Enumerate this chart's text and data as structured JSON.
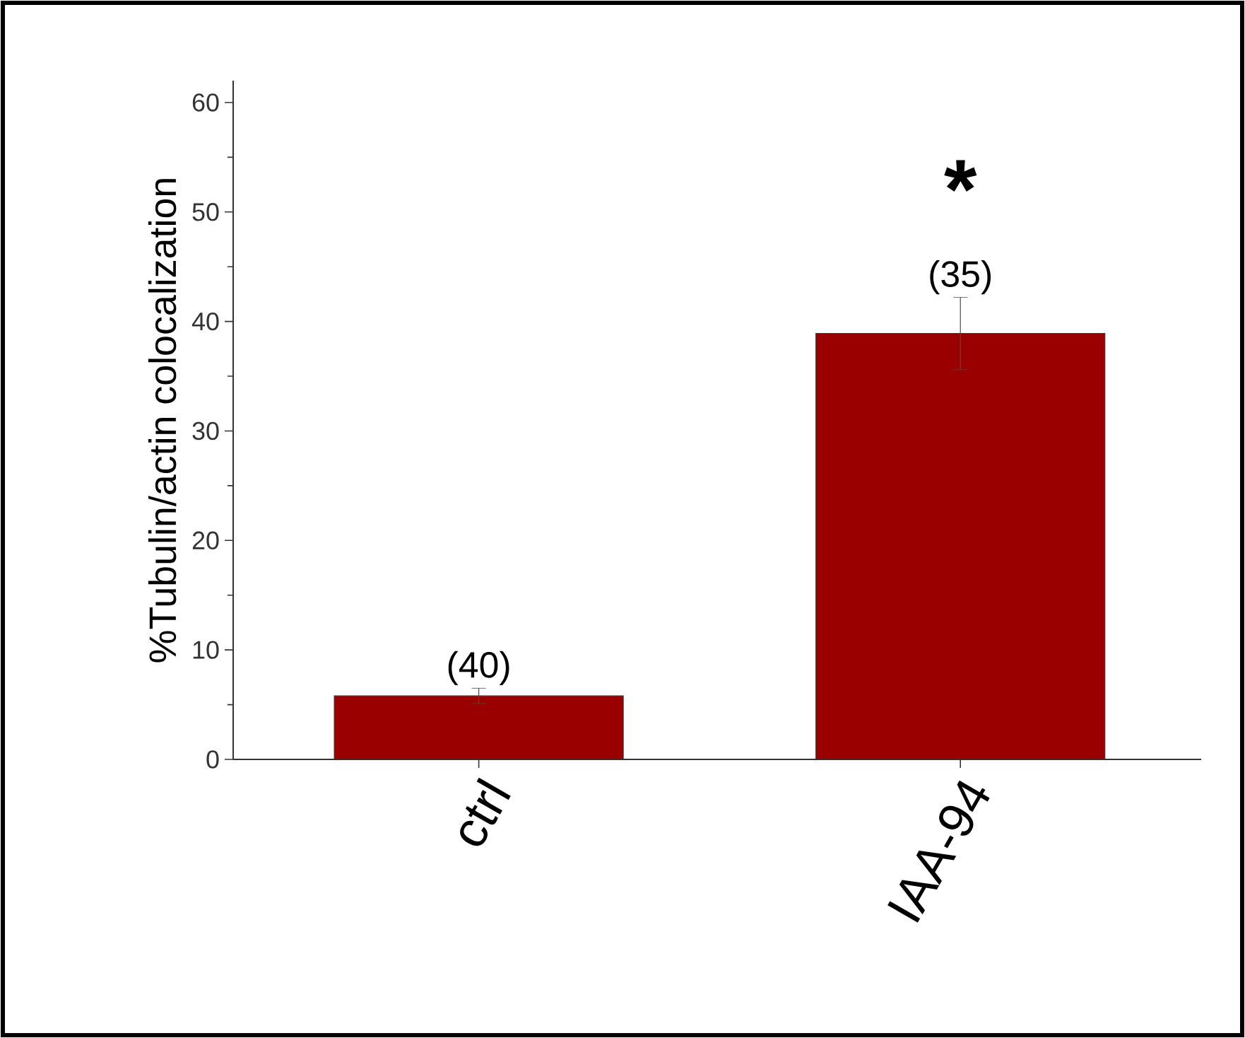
{
  "chart_data": {
    "type": "bar",
    "ylabel": "%Tubulin/actin colocalization",
    "categories": [
      "ctrl",
      "IAA-94"
    ],
    "values": [
      5.8,
      38.9
    ],
    "errors": [
      0.7,
      3.3
    ],
    "color": "#9b0000",
    "ylim": [
      0,
      62
    ],
    "yticks": [
      0,
      10,
      20,
      30,
      40,
      50,
      60
    ],
    "grid": false,
    "annotations": [
      {
        "text": "(40)",
        "x": "ctrl",
        "y": 6.5
      },
      {
        "text": "(35)",
        "x": "IAA-94",
        "y": 42.2
      },
      "*"
    ]
  }
}
